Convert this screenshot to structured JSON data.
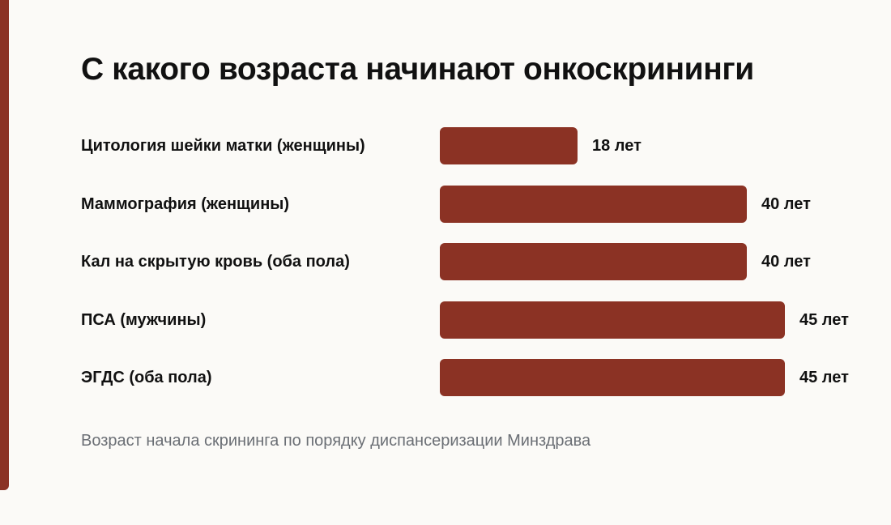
{
  "colors": {
    "accent": "#8b3224",
    "bar": "#8b3224",
    "text": "#111111",
    "footnote": "#6b6f75",
    "background": "#fbfaf7"
  },
  "chart_data": {
    "type": "bar",
    "orientation": "horizontal",
    "title": "С какого возраста начинают онкоскрининги",
    "categories": [
      "Цитология шейки матки (женщины)",
      "Маммография (женщины)",
      "Кал на скрытую кровь (оба пола)",
      "ПСА (мужчины)",
      "ЭГДС (оба пола)"
    ],
    "values": [
      18,
      40,
      40,
      45,
      45
    ],
    "value_labels": [
      "18 лет",
      "40 лет",
      "40 лет",
      "45 лет",
      "45 лет"
    ],
    "xlim": [
      0,
      45
    ],
    "grid": false,
    "footnote": "Возраст начала скрининга по порядку диспансеризации Минздрава"
  }
}
